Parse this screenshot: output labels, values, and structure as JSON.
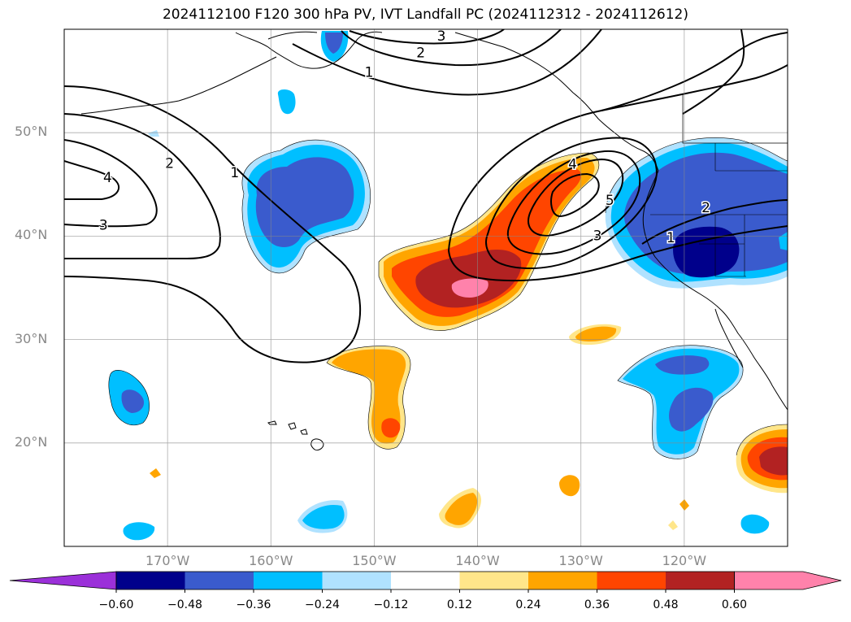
{
  "title": "2024112100 F120 300 hPa PV, IVT Landfall PC (2024112312 - 2024112612)",
  "map": {
    "extent": {
      "lon_min": -180,
      "lon_max": -110,
      "lat_min": 10,
      "lat_max": 60
    },
    "gridlines": true,
    "lat_ticks": [
      {
        "value": 50,
        "label": "50°N"
      },
      {
        "value": 40,
        "label": "40°N"
      },
      {
        "value": 30,
        "label": "30°N"
      },
      {
        "value": 20,
        "label": "20°N"
      }
    ],
    "lon_ticks": [
      {
        "value": -170,
        "label": "170°W"
      },
      {
        "value": -160,
        "label": "160°W"
      },
      {
        "value": -150,
        "label": "150°W"
      },
      {
        "value": -140,
        "label": "140°W"
      },
      {
        "value": -130,
        "label": "130°W"
      },
      {
        "value": -120,
        "label": "120°W"
      }
    ],
    "contour_labels": [
      {
        "text": "3",
        "lon": -143.5,
        "lat": 59.3
      },
      {
        "text": "2",
        "lon": -145.5,
        "lat": 57.7
      },
      {
        "text": "1",
        "lon": -150.5,
        "lat": 55.8
      },
      {
        "text": "2",
        "lon": -169.8,
        "lat": 47.0
      },
      {
        "text": "1",
        "lon": -163.5,
        "lat": 46.1
      },
      {
        "text": "4",
        "lon": -175.8,
        "lat": 45.6
      },
      {
        "text": "3",
        "lon": -176.2,
        "lat": 41.0
      },
      {
        "text": "4",
        "lon": -130.8,
        "lat": 46.9
      },
      {
        "text": "5",
        "lon": -127.2,
        "lat": 43.4
      },
      {
        "text": "3",
        "lon": -128.4,
        "lat": 40.0
      },
      {
        "text": "2",
        "lon": -117.9,
        "lat": 42.7
      },
      {
        "text": "1",
        "lon": -121.3,
        "lat": 39.8
      }
    ]
  },
  "colorbar": {
    "levels": [
      "−0.60",
      "−0.48",
      "−0.36",
      "−0.24",
      "−0.12",
      "0.12",
      "0.24",
      "0.36",
      "0.48",
      "0.60"
    ],
    "colors": [
      "#9b30d9",
      "#00008b",
      "#3a5bcd",
      "#00bfff",
      "#b0e2ff",
      "#ffffff",
      "#ffe68a",
      "#ffa500",
      "#ff4500",
      "#b22222",
      "#ff82ab"
    ],
    "extend": "both"
  }
}
